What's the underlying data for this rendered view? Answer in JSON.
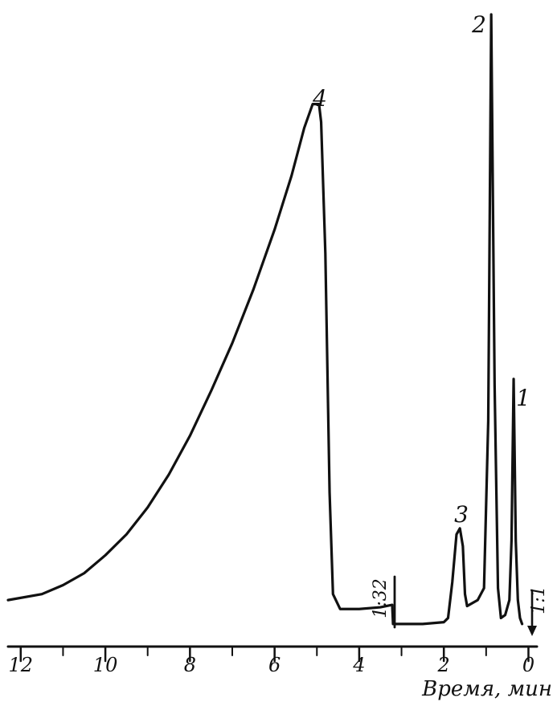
{
  "chart_data": {
    "type": "line",
    "title": "",
    "xlabel": "Время, мин",
    "ylabel": "",
    "xlim": [
      12.3,
      -0.2
    ],
    "x_reversed": true,
    "ylim": [
      0,
      1.0
    ],
    "grid": false,
    "ticks": {
      "x": [
        {
          "value": 12,
          "label": "12"
        },
        {
          "value": 10,
          "label": "10"
        },
        {
          "value": 8,
          "label": "8"
        },
        {
          "value": 6,
          "label": "6"
        },
        {
          "value": 4,
          "label": "4"
        },
        {
          "value": 2,
          "label": "2"
        },
        {
          "value": 0,
          "label": "0"
        }
      ],
      "minor_every": 1
    },
    "series": [
      {
        "points": [
          [
            12.3,
            0.02
          ],
          [
            11.5,
            0.03
          ],
          [
            11.0,
            0.045
          ],
          [
            10.5,
            0.065
          ],
          [
            10.0,
            0.095
          ],
          [
            9.5,
            0.13
          ],
          [
            9.0,
            0.175
          ],
          [
            8.5,
            0.23
          ],
          [
            8.0,
            0.295
          ],
          [
            7.5,
            0.37
          ],
          [
            7.0,
            0.45
          ],
          [
            6.5,
            0.54
          ],
          [
            6.0,
            0.64
          ],
          [
            5.6,
            0.73
          ],
          [
            5.3,
            0.81
          ],
          [
            5.1,
            0.85
          ],
          [
            4.95,
            0.85
          ],
          [
            4.9,
            0.82
          ],
          [
            4.8,
            0.6
          ],
          [
            4.7,
            0.2
          ],
          [
            4.62,
            0.03
          ],
          [
            4.45,
            0.005
          ],
          [
            4.0,
            0.005
          ],
          [
            3.5,
            0.008
          ],
          [
            3.22,
            0.012
          ],
          [
            3.2,
            -0.02
          ],
          [
            2.5,
            -0.02
          ],
          [
            2.0,
            -0.017
          ],
          [
            1.9,
            -0.01
          ],
          [
            1.8,
            0.05
          ],
          [
            1.7,
            0.13
          ],
          [
            1.62,
            0.14
          ],
          [
            1.55,
            0.11
          ],
          [
            1.5,
            0.03
          ],
          [
            1.45,
            0.01
          ],
          [
            1.2,
            0.02
          ],
          [
            1.05,
            0.04
          ],
          [
            0.95,
            0.32
          ],
          [
            0.88,
            1.0
          ],
          [
            0.8,
            0.38
          ],
          [
            0.72,
            0.04
          ],
          [
            0.65,
            -0.01
          ],
          [
            0.55,
            -0.005
          ],
          [
            0.45,
            0.02
          ],
          [
            0.4,
            0.12
          ],
          [
            0.35,
            0.39
          ],
          [
            0.3,
            0.12
          ],
          [
            0.25,
            0.02
          ],
          [
            0.2,
            -0.01
          ],
          [
            0.15,
            -0.02
          ]
        ]
      }
    ],
    "peaks": [
      {
        "label": "1",
        "x": 0.35,
        "y": 0.39
      },
      {
        "label": "2",
        "x": 0.88,
        "y": 1.0
      },
      {
        "label": "3",
        "x": 1.62,
        "y": 0.14
      },
      {
        "label": "4",
        "x": 5.0,
        "y": 0.85
      }
    ],
    "annotations": [
      {
        "label": "1:32",
        "x": 3.22
      },
      {
        "label": "1:1",
        "x": 0.1
      }
    ]
  },
  "style": {
    "ink": "#111111",
    "background": "#ffffff"
  }
}
